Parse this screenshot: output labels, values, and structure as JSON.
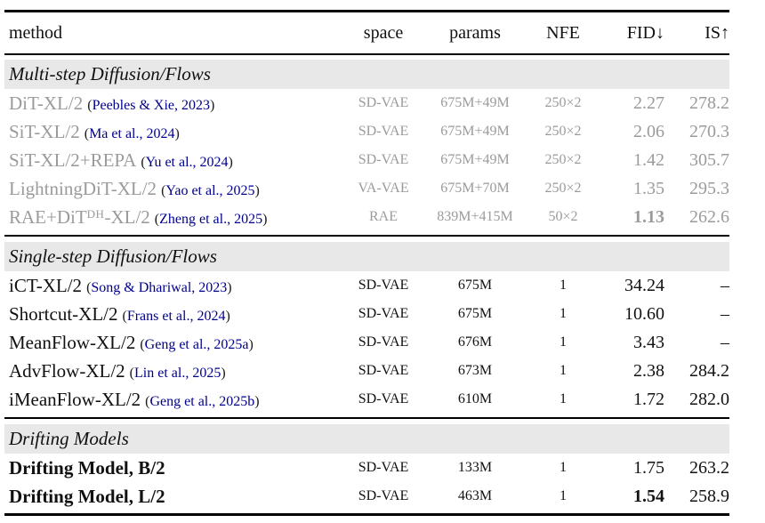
{
  "colors": {
    "ink": "#111111",
    "muted": "#9b9b9b",
    "citation": "#00008b",
    "paren": "#1c1c1c",
    "band": "#e8e8e8",
    "rule": "#000000"
  },
  "table": {
    "header": {
      "method": "method",
      "space": "space",
      "params": "params",
      "nfe": "NFE",
      "fid": "FID↓",
      "is": "IS↑"
    },
    "format": {
      "citation_open": "(",
      "citation_close": ")"
    },
    "sections": [
      {
        "title": "Multi-step Diffusion/Flows",
        "muted": true,
        "rows": [
          {
            "method": {
              "pre": "DiT-XL/2",
              "sup": "",
              "post": ""
            },
            "citation": "Peebles & Xie, 2023",
            "space": "SD-VAE",
            "params": "675M+49M",
            "nfe": "250×2",
            "fid": "2.27",
            "is": "278.2",
            "fid_bold": false,
            "method_bold": false
          },
          {
            "method": {
              "pre": "SiT-XL/2",
              "sup": "",
              "post": ""
            },
            "citation": "Ma et al., 2024",
            "space": "SD-VAE",
            "params": "675M+49M",
            "nfe": "250×2",
            "fid": "2.06",
            "is": "270.3",
            "fid_bold": false,
            "method_bold": false
          },
          {
            "method": {
              "pre": "SiT-XL/2+REPA",
              "sup": "",
              "post": ""
            },
            "citation": "Yu et al., 2024",
            "space": "SD-VAE",
            "params": "675M+49M",
            "nfe": "250×2",
            "fid": "1.42",
            "is": "305.7",
            "fid_bold": false,
            "method_bold": false
          },
          {
            "method": {
              "pre": "LightningDiT-XL/2",
              "sup": "",
              "post": ""
            },
            "citation": "Yao et al., 2025",
            "space": "VA-VAE",
            "params": "675M+70M",
            "nfe": "250×2",
            "fid": "1.35",
            "is": "295.3",
            "fid_bold": false,
            "method_bold": false
          },
          {
            "method": {
              "pre": "RAE+DiT",
              "sup": "DH",
              "post": "-XL/2"
            },
            "citation": "Zheng et al., 2025",
            "space": "RAE",
            "params": "839M+415M",
            "nfe": "50×2",
            "fid": "1.13",
            "is": "262.6",
            "fid_bold": true,
            "method_bold": false
          }
        ]
      },
      {
        "title": "Single-step Diffusion/Flows",
        "muted": false,
        "rows": [
          {
            "method": {
              "pre": "iCT-XL/2",
              "sup": "",
              "post": ""
            },
            "citation": "Song & Dhariwal, 2023",
            "space": "SD-VAE",
            "params": "675M",
            "nfe": "1",
            "fid": "34.24",
            "is": "–",
            "fid_bold": false,
            "method_bold": false
          },
          {
            "method": {
              "pre": "Shortcut-XL/2",
              "sup": "",
              "post": ""
            },
            "citation": "Frans et al., 2024",
            "space": "SD-VAE",
            "params": "675M",
            "nfe": "1",
            "fid": "10.60",
            "is": "–",
            "fid_bold": false,
            "method_bold": false
          },
          {
            "method": {
              "pre": "MeanFlow-XL/2",
              "sup": "",
              "post": ""
            },
            "citation": "Geng et al., 2025a",
            "space": "SD-VAE",
            "params": "676M",
            "nfe": "1",
            "fid": "3.43",
            "is": "–",
            "fid_bold": false,
            "method_bold": false
          },
          {
            "method": {
              "pre": "AdvFlow-XL/2",
              "sup": "",
              "post": ""
            },
            "citation": "Lin et al., 2025",
            "space": "SD-VAE",
            "params": "673M",
            "nfe": "1",
            "fid": "2.38",
            "is": "284.2",
            "fid_bold": false,
            "method_bold": false
          },
          {
            "method": {
              "pre": "iMeanFlow-XL/2",
              "sup": "",
              "post": ""
            },
            "citation": "Geng et al., 2025b",
            "space": "SD-VAE",
            "params": "610M",
            "nfe": "1",
            "fid": "1.72",
            "is": "282.0",
            "fid_bold": false,
            "method_bold": false
          }
        ]
      },
      {
        "title": "Drifting Models",
        "muted": false,
        "rows": [
          {
            "method": {
              "pre": "Drifting Model, B/2",
              "sup": "",
              "post": ""
            },
            "citation": "",
            "space": "SD-VAE",
            "params": "133M",
            "nfe": "1",
            "fid": "1.75",
            "is": "263.2",
            "fid_bold": false,
            "method_bold": true
          },
          {
            "method": {
              "pre": "Drifting Model, L/2",
              "sup": "",
              "post": ""
            },
            "citation": "",
            "space": "SD-VAE",
            "params": "463M",
            "nfe": "1",
            "fid": "1.54",
            "is": "258.9",
            "fid_bold": true,
            "method_bold": true
          }
        ]
      }
    ]
  }
}
